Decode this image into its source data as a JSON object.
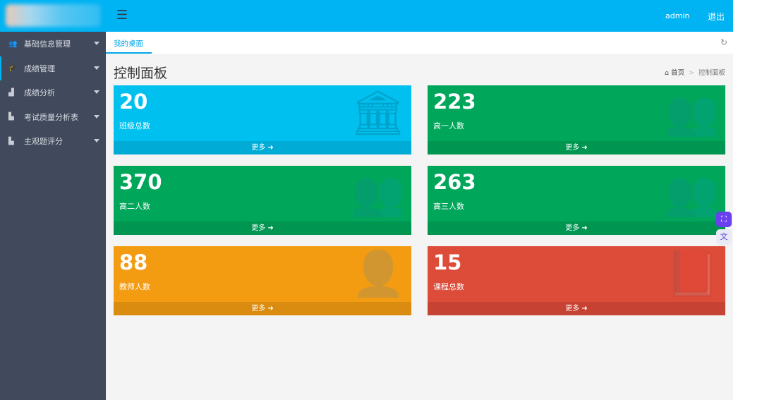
{
  "header": {
    "menu_icon": "hamburger-icon",
    "user": "admin",
    "logout": "退出"
  },
  "sidebar": {
    "items": [
      {
        "label": "基础信息管理",
        "icon": "users-icon"
      },
      {
        "label": "成绩管理",
        "icon": "graduation-cap-icon"
      },
      {
        "label": "成绩分析",
        "icon": "area-chart-icon"
      },
      {
        "label": "考试质量分析表",
        "icon": "bar-chart-icon"
      },
      {
        "label": "主观题评分",
        "icon": "bar-chart-icon"
      }
    ]
  },
  "tabs": [
    {
      "label": "我的桌面",
      "active": true
    }
  ],
  "page": {
    "title": "控制面板",
    "breadcrumb": [
      "首页",
      "控制面板"
    ]
  },
  "cards": [
    {
      "value": "20",
      "label": "班级总数",
      "more": "更多",
      "color": "#00c0ef",
      "icon": "institution-icon"
    },
    {
      "value": "223",
      "label": "高一人数",
      "more": "更多",
      "color": "#00a65a",
      "icon": "users-icon"
    },
    {
      "value": "370",
      "label": "高二人数",
      "more": "更多",
      "color": "#00a65a",
      "icon": "users-icon"
    },
    {
      "value": "263",
      "label": "高三人数",
      "more": "更多",
      "color": "#00a65a",
      "icon": "users-icon"
    },
    {
      "value": "88",
      "label": "教师人数",
      "more": "更多",
      "color": "#f39c12",
      "icon": "user-icon"
    },
    {
      "value": "15",
      "label": "课程总数",
      "more": "更多",
      "color": "#dd4b39",
      "icon": "book-icon"
    }
  ]
}
